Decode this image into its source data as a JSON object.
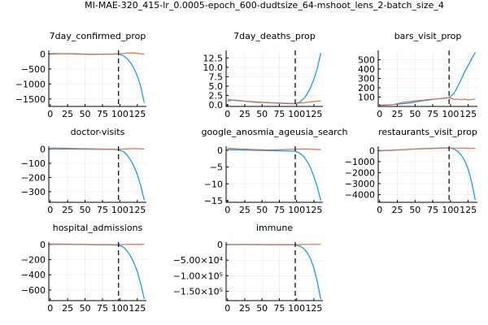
{
  "figure": {
    "suptitle": "MI-MAE-320_415-lr_0.0005-epoch_600-dudtsize_64-mshoot_lens_2-batch_size_4",
    "colors": {
      "series1": "#009af9",
      "series2": "#e26f46",
      "vline": "#000000"
    }
  },
  "chart_data": [
    {
      "type": "line",
      "title": "7day_confirmed_prop",
      "xlim": [
        -2,
        138
      ],
      "ylim": [
        -1750,
        120
      ],
      "xticks": [
        0,
        25,
        50,
        75,
        100,
        125
      ],
      "yticks": [
        0,
        -500,
        -1000,
        -1500
      ],
      "ytick_labels": [
        "0",
        "−500",
        "−1000",
        "−1500"
      ],
      "vline_x": 98,
      "series": [
        {
          "color": "#009af9",
          "x": [
            0,
            20,
            40,
            60,
            80,
            98,
            105,
            110,
            115,
            120,
            125,
            130,
            135
          ],
          "y": [
            0,
            10,
            5,
            -10,
            -5,
            0,
            -60,
            -150,
            -290,
            -480,
            -740,
            -1100,
            -1620
          ]
        },
        {
          "color": "#e26f46",
          "x": [
            0,
            20,
            40,
            60,
            80,
            98,
            110,
            120,
            135
          ],
          "y": [
            20,
            10,
            -5,
            -15,
            -10,
            0,
            30,
            35,
            -10
          ]
        }
      ]
    },
    {
      "type": "line",
      "title": "7day_deaths_prop",
      "xlim": [
        -2,
        138
      ],
      "ylim": [
        -0.4,
        14.5
      ],
      "xticks": [
        0,
        25,
        50,
        75,
        100,
        125
      ],
      "yticks": [
        0,
        2.5,
        5.0,
        7.5,
        10.0,
        12.5
      ],
      "ytick_labels": [
        "0.0",
        "2.5",
        "5.0",
        "7.5",
        "10.0",
        "12.5"
      ],
      "vline_x": 98,
      "series": [
        {
          "color": "#009af9",
          "x": [
            0,
            10,
            25,
            40,
            60,
            80,
            98,
            105,
            110,
            115,
            120,
            125,
            130,
            135
          ],
          "y": [
            1.1,
            1.3,
            1.0,
            0.8,
            0.6,
            0.4,
            0.3,
            0.8,
            1.6,
            2.8,
            4.5,
            6.8,
            9.8,
            13.8
          ]
        },
        {
          "color": "#e26f46",
          "x": [
            0,
            10,
            25,
            40,
            60,
            80,
            98,
            110,
            120,
            135
          ],
          "y": [
            1.5,
            1.2,
            1.0,
            0.7,
            0.6,
            0.5,
            0.4,
            0.6,
            0.8,
            1.1
          ]
        }
      ]
    },
    {
      "type": "line",
      "title": "bars_visit_prop",
      "xlim": [
        -2,
        138
      ],
      "ylim": [
        0,
        600
      ],
      "xticks": [
        0,
        25,
        50,
        75,
        100,
        125
      ],
      "yticks": [
        100,
        200,
        300,
        400,
        500
      ],
      "ytick_labels": [
        "100",
        "200",
        "300",
        "400",
        "500"
      ],
      "vline_x": 98,
      "series": [
        {
          "color": "#009af9",
          "x": [
            0,
            20,
            40,
            60,
            80,
            98,
            105,
            110,
            115,
            120,
            125,
            130,
            135
          ],
          "y": [
            15,
            20,
            35,
            60,
            80,
            95,
            140,
            210,
            290,
            370,
            440,
            510,
            580
          ]
        },
        {
          "color": "#e26f46",
          "x": [
            0,
            10,
            20,
            30,
            40,
            50,
            60,
            70,
            80,
            90,
            98,
            105,
            110,
            115,
            120,
            125,
            130,
            135
          ],
          "y": [
            10,
            15,
            20,
            40,
            50,
            60,
            65,
            75,
            80,
            85,
            95,
            75,
            80,
            72,
            78,
            70,
            76,
            80
          ]
        }
      ]
    },
    {
      "type": "line",
      "title": "doctor-visits",
      "xlim": [
        -2,
        138
      ],
      "ylim": [
        -375,
        20
      ],
      "xticks": [
        0,
        25,
        50,
        75,
        100,
        125
      ],
      "yticks": [
        0,
        -100,
        -200,
        -300
      ],
      "ytick_labels": [
        "0",
        "−100",
        "−200",
        "−300"
      ],
      "vline_x": 98,
      "series": [
        {
          "color": "#009af9",
          "x": [
            0,
            20,
            40,
            60,
            80,
            98,
            105,
            110,
            115,
            120,
            125,
            130,
            135
          ],
          "y": [
            0,
            1,
            0,
            -1,
            -2,
            -4,
            -18,
            -40,
            -75,
            -120,
            -180,
            -260,
            -360
          ]
        },
        {
          "color": "#e26f46",
          "x": [
            0,
            20,
            40,
            60,
            80,
            98,
            110,
            120,
            135
          ],
          "y": [
            8,
            6,
            4,
            2,
            0,
            -2,
            2,
            4,
            0
          ]
        }
      ]
    },
    {
      "type": "line",
      "title": "google_anosmia_ageusia_search",
      "xlim": [
        -2,
        138
      ],
      "ylim": [
        -15.5,
        1.2
      ],
      "xticks": [
        0,
        25,
        50,
        75,
        100,
        125
      ],
      "yticks": [
        0,
        -5,
        -10,
        -15
      ],
      "ytick_labels": [
        "0",
        "−5",
        "−10",
        "−15"
      ],
      "vline_x": 98,
      "series": [
        {
          "color": "#009af9",
          "x": [
            0,
            20,
            40,
            60,
            80,
            98,
            105,
            110,
            115,
            120,
            125,
            130,
            135
          ],
          "y": [
            0.2,
            0.1,
            0.0,
            -0.1,
            -0.2,
            -0.3,
            -0.9,
            -1.8,
            -3.2,
            -5.2,
            -7.8,
            -11.0,
            -15.0
          ]
        },
        {
          "color": "#e26f46",
          "x": [
            0,
            20,
            40,
            60,
            80,
            98,
            110,
            120,
            135
          ],
          "y": [
            0.6,
            0.4,
            0.2,
            0.1,
            0.2,
            0.3,
            0.4,
            0.3,
            0.2
          ]
        }
      ]
    },
    {
      "type": "line",
      "title": "restaurants_visit_prop",
      "xlim": [
        -2,
        138
      ],
      "ylim": [
        -4700,
        400
      ],
      "xticks": [
        0,
        25,
        50,
        75,
        100,
        125
      ],
      "yticks": [
        0,
        -1000,
        -2000,
        -3000,
        -4000
      ],
      "ytick_labels": [
        "0",
        "−1000",
        "−2000",
        "−3000",
        "−4000"
      ],
      "vline_x": 98,
      "series": [
        {
          "color": "#009af9",
          "x": [
            0,
            20,
            40,
            60,
            80,
            98,
            105,
            110,
            115,
            120,
            125,
            130,
            135
          ],
          "y": [
            0,
            50,
            120,
            180,
            220,
            250,
            150,
            -50,
            -400,
            -900,
            -1700,
            -2900,
            -4500
          ]
        },
        {
          "color": "#e26f46",
          "x": [
            0,
            20,
            40,
            60,
            80,
            98,
            110,
            120,
            135
          ],
          "y": [
            -30,
            40,
            110,
            170,
            210,
            240,
            230,
            220,
            210
          ]
        }
      ]
    },
    {
      "type": "line",
      "title": "hospital_admissions",
      "xlim": [
        -2,
        138
      ],
      "ylim": [
        -740,
        30
      ],
      "xticks": [
        0,
        25,
        50,
        75,
        100,
        125
      ],
      "yticks": [
        0,
        -200,
        -400,
        -600
      ],
      "ytick_labels": [
        "0",
        "−200",
        "−400",
        "−600"
      ],
      "vline_x": 98,
      "series": [
        {
          "color": "#009af9",
          "x": [
            0,
            20,
            40,
            60,
            80,
            98,
            105,
            110,
            115,
            120,
            125,
            130,
            135
          ],
          "y": [
            0,
            2,
            0,
            -3,
            -5,
            -8,
            -35,
            -80,
            -150,
            -240,
            -360,
            -520,
            -720
          ]
        },
        {
          "color": "#e26f46",
          "x": [
            0,
            20,
            40,
            60,
            80,
            98,
            110,
            120,
            135
          ],
          "y": [
            6,
            4,
            2,
            0,
            -2,
            -3,
            0,
            2,
            0
          ]
        }
      ]
    },
    {
      "type": "line",
      "title": "immune",
      "xlim": [
        -2,
        138
      ],
      "ylim": [
        -180000,
        8000
      ],
      "xticks": [
        0,
        25,
        50,
        75,
        100,
        125
      ],
      "yticks": [
        0,
        -50000,
        -100000,
        -150000
      ],
      "ytick_labels": [
        "0",
        "−5.00×10⁴",
        "−1.00×10⁵",
        "−1.50×10⁵"
      ],
      "vline_x": 98,
      "series": [
        {
          "color": "#009af9",
          "x": [
            0,
            20,
            40,
            60,
            80,
            98,
            105,
            110,
            115,
            120,
            125,
            130,
            135
          ],
          "y": [
            0,
            100,
            0,
            -200,
            -400,
            -800,
            -5000,
            -12000,
            -25000,
            -45000,
            -75000,
            -120000,
            -176000
          ]
        },
        {
          "color": "#e26f46",
          "x": [
            0,
            20,
            40,
            60,
            80,
            98,
            110,
            120,
            135
          ],
          "y": [
            800,
            600,
            400,
            200,
            100,
            0,
            500,
            800,
            900
          ]
        }
      ]
    }
  ]
}
